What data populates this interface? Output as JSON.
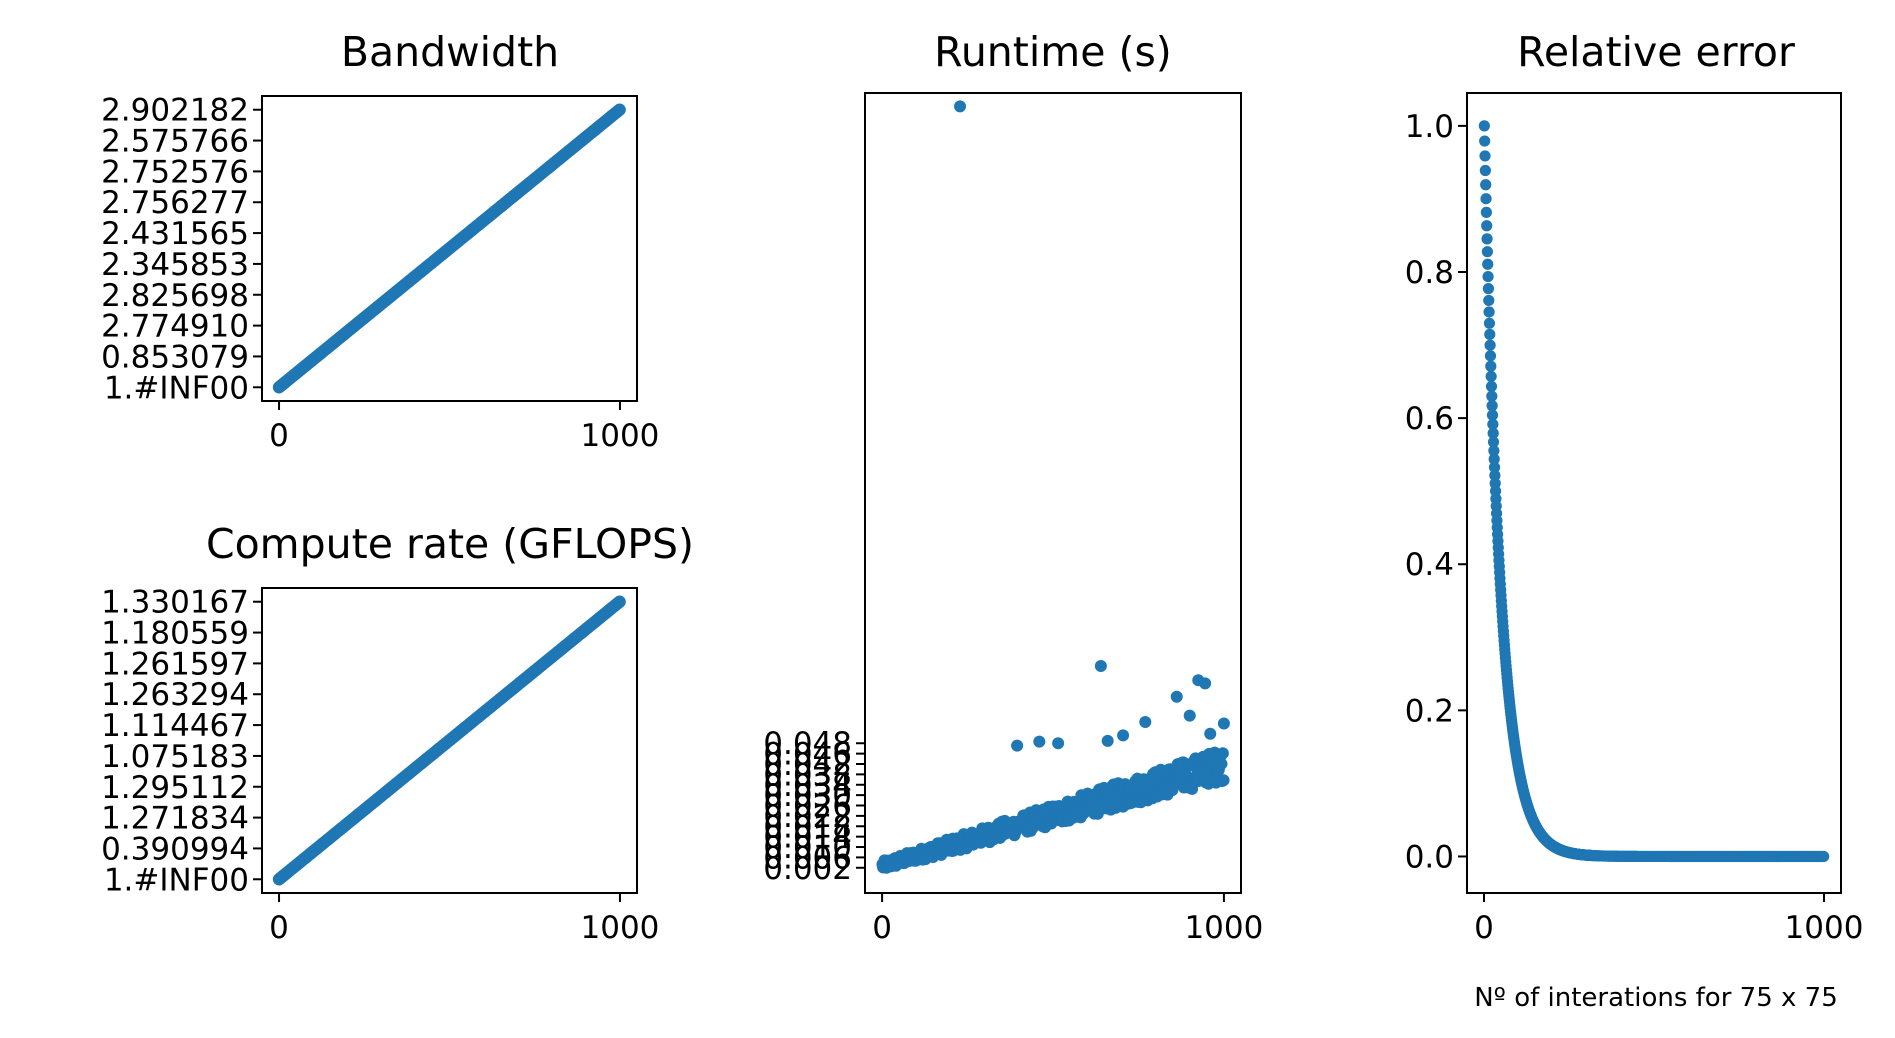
{
  "figure": {
    "marker_color": "#1f77b4"
  },
  "chart_data": [
    {
      "id": "bandwidth",
      "type": "scatter",
      "title": "Bandwidth",
      "xlabel": "",
      "ylabel": "",
      "x_ticks": [
        "0",
        "1000"
      ],
      "x_tick_values": [
        0,
        1000
      ],
      "xlim": [
        -50,
        1050
      ],
      "y_categorical_ticks": [
        "1.#INF00",
        "0.853079",
        "2.774910",
        "2.825698",
        "2.345853",
        "2.431565",
        "2.756277",
        "2.752576",
        "2.575766",
        "2.902182"
      ],
      "x_range": [
        1,
        1000
      ],
      "y_range": [
        0,
        999
      ],
      "points_description_count": 1000,
      "grid": false
    },
    {
      "id": "compute_rate",
      "type": "scatter",
      "title": "Compute rate (GFLOPS)",
      "xlabel": "",
      "ylabel": "",
      "x_ticks": [
        "0",
        "1000"
      ],
      "x_tick_values": [
        0,
        1000
      ],
      "xlim": [
        -50,
        1050
      ],
      "y_categorical_ticks": [
        "1.#INF00",
        "0.390994",
        "1.271834",
        "1.295112",
        "1.075183",
        "1.114467",
        "1.263294",
        "1.261597",
        "1.180559",
        "1.330167"
      ],
      "x_range": [
        1,
        1000
      ],
      "y_range": [
        0,
        999
      ],
      "grid": false
    },
    {
      "id": "runtime",
      "type": "scatter",
      "title": "Runtime (s)",
      "xlabel": "",
      "ylabel": "",
      "x_ticks": [
        "0",
        "1000"
      ],
      "x_tick_values": [
        0,
        1000
      ],
      "xlim": [
        -50,
        1050
      ],
      "ylim": [
        -0.03,
        0.985
      ],
      "y_ticks_visible": [
        "0.002",
        "0.048"
      ],
      "y_tick_stack_values": [
        0.002,
        0.006,
        0.01,
        0.014,
        0.018,
        0.022,
        0.026,
        0.03,
        0.034,
        0.038,
        0.042,
        0.046,
        0.048
      ],
      "y_tick_stack_labels": [
        "0.002",
        "0.006",
        "0.010",
        "0.014",
        "0.018",
        "0.022",
        "0.026",
        "0.030",
        "0.034",
        "0.038",
        "0.042",
        "0.046",
        "0.048"
      ],
      "trend": {
        "x": [
          0,
          1000
        ],
        "y": [
          0.002,
          0.125
        ]
      },
      "outliers": [
        {
          "x": 228,
          "y": 0.968
        },
        {
          "x": 640,
          "y": 0.258
        },
        {
          "x": 925,
          "y": 0.24
        },
        {
          "x": 945,
          "y": 0.236
        },
        {
          "x": 770,
          "y": 0.187
        },
        {
          "x": 862,
          "y": 0.219
        },
        {
          "x": 460,
          "y": 0.162
        },
        {
          "x": 395,
          "y": 0.157
        },
        {
          "x": 705,
          "y": 0.17
        },
        {
          "x": 660,
          "y": 0.163
        },
        {
          "x": 515,
          "y": 0.16
        },
        {
          "x": 900,
          "y": 0.195
        },
        {
          "x": 1000,
          "y": 0.185
        },
        {
          "x": 960,
          "y": 0.172
        }
      ],
      "grid": false
    },
    {
      "id": "relative_error",
      "type": "scatter",
      "title": "Relative error",
      "xlabel": "Nº of interations for 75 x 75",
      "ylabel": "",
      "x_ticks": [
        "0",
        "1000"
      ],
      "x_tick_values": [
        0,
        1000
      ],
      "xlim": [
        -50,
        1050
      ],
      "y_ticks": [
        "0.0",
        "0.2",
        "0.4",
        "0.6",
        "0.8",
        "1.0"
      ],
      "y_tick_values": [
        0.0,
        0.2,
        0.4,
        0.6,
        0.8,
        1.0
      ],
      "ylim": [
        -0.05,
        1.045
      ],
      "decay": {
        "start": 1.0,
        "rate": 0.021,
        "x_range": [
          1,
          1000
        ]
      },
      "grid": false
    }
  ]
}
